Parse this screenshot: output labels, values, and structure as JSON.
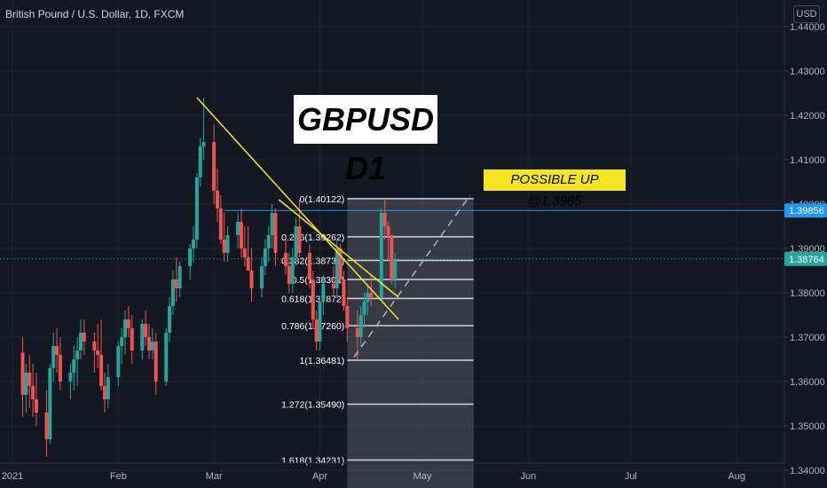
{
  "header": {
    "symbol": "British Pound / U.S. Dollar, 1D, FXCM",
    "currency": "USD"
  },
  "title": "GBPUSD D1",
  "annotation": "POSSIBLE UP @1.3985",
  "colors": {
    "background": "#131722",
    "up": "#26a69a",
    "down": "#ef5350",
    "trend": "#f5e61e",
    "hline": "#2196f3",
    "dashed": "#b2b5be",
    "fib": "#d1d4dc"
  },
  "chart_data": {
    "type": "candlestick",
    "ylim": [
      1.336,
      1.446
    ],
    "yticks": [
      "1.44000",
      "1.43000",
      "1.42000",
      "1.41000",
      "1.40000",
      "1.39000",
      "1.38000",
      "1.37000",
      "1.36000",
      "1.35000",
      "1.34000"
    ],
    "xticks": [
      {
        "label": "2021",
        "date": "2021-01-01"
      },
      {
        "label": "Feb",
        "date": "2021-02-01"
      },
      {
        "label": "Mar",
        "date": "2021-03-01"
      },
      {
        "label": "Apr",
        "date": "2021-04-01"
      },
      {
        "label": "May",
        "date": "2021-05-01"
      },
      {
        "label": "Jun",
        "date": "2021-06-01"
      },
      {
        "label": "Jul",
        "date": "2021-07-01"
      },
      {
        "label": "Aug",
        "date": "2021-08-01"
      }
    ],
    "price_labels": [
      {
        "text": "1.39856",
        "value": 1.39856,
        "style": "blue"
      },
      {
        "text": "1.38764",
        "value": 1.38764,
        "style": "green"
      }
    ],
    "horizontal_line": {
      "value": 1.39856,
      "from": "2021-03-04"
    },
    "fibonacci": {
      "from": "2021-04-09",
      "to": "2021-05-16",
      "levels": [
        {
          "label": "0(1.40122)",
          "value": 1.40122
        },
        {
          "label": "0.236(1.39262)",
          "value": 1.39262
        },
        {
          "label": "0.382(1.38731)",
          "value": 1.38731
        },
        {
          "label": "0.5(1.38301)",
          "value": 1.38301
        },
        {
          "label": "0.618(1.37872)",
          "value": 1.37872
        },
        {
          "label": "0.786(1.37260)",
          "value": 1.3726
        },
        {
          "label": "1(1.36481)",
          "value": 1.36481
        },
        {
          "label": "1.272(1.35490)",
          "value": 1.3549
        },
        {
          "label": "1.618(1.34231)",
          "value": 1.34231
        }
      ]
    },
    "trendlines": [
      {
        "x1": "2021-02-24",
        "y1": 1.424,
        "x2": "2021-04-24",
        "y2": 1.374
      },
      {
        "x1": "2021-03-20",
        "y1": 1.401,
        "x2": "2021-04-24",
        "y2": 1.379
      }
    ],
    "dashed_line": {
      "x1": "2021-04-11",
      "y1": 1.3655,
      "x2": "2021-05-15",
      "y2": 1.402
    },
    "candles": [
      {
        "d": "2021-01-04",
        "o": 1.3665,
        "h": 1.37,
        "l": 1.352,
        "c": 1.357
      },
      {
        "d": "2021-01-05",
        "o": 1.357,
        "h": 1.364,
        "l": 1.353,
        "c": 1.362
      },
      {
        "d": "2021-01-06",
        "o": 1.362,
        "h": 1.366,
        "l": 1.354,
        "c": 1.359
      },
      {
        "d": "2021-01-07",
        "o": 1.359,
        "h": 1.364,
        "l": 1.352,
        "c": 1.356
      },
      {
        "d": "2021-01-08",
        "o": 1.356,
        "h": 1.362,
        "l": 1.35,
        "c": 1.353
      },
      {
        "d": "2021-01-11",
        "o": 1.353,
        "h": 1.358,
        "l": 1.343,
        "c": 1.347
      },
      {
        "d": "2021-01-12",
        "o": 1.347,
        "h": 1.364,
        "l": 1.346,
        "c": 1.363
      },
      {
        "d": "2021-01-13",
        "o": 1.363,
        "h": 1.371,
        "l": 1.36,
        "c": 1.368
      },
      {
        "d": "2021-01-14",
        "o": 1.368,
        "h": 1.372,
        "l": 1.362,
        "c": 1.366
      },
      {
        "d": "2021-01-15",
        "o": 1.366,
        "h": 1.37,
        "l": 1.358,
        "c": 1.36
      },
      {
        "d": "2021-01-18",
        "o": 1.36,
        "h": 1.364,
        "l": 1.356,
        "c": 1.362
      },
      {
        "d": "2021-01-19",
        "o": 1.362,
        "h": 1.368,
        "l": 1.358,
        "c": 1.365
      },
      {
        "d": "2021-01-20",
        "o": 1.365,
        "h": 1.37,
        "l": 1.359,
        "c": 1.367
      },
      {
        "d": "2021-01-21",
        "o": 1.367,
        "h": 1.374,
        "l": 1.365,
        "c": 1.371
      },
      {
        "d": "2021-01-22",
        "o": 1.371,
        "h": 1.374,
        "l": 1.366,
        "c": 1.369
      },
      {
        "d": "2021-01-25",
        "o": 1.369,
        "h": 1.371,
        "l": 1.362,
        "c": 1.367
      },
      {
        "d": "2021-01-26",
        "o": 1.367,
        "h": 1.373,
        "l": 1.363,
        "c": 1.366
      },
      {
        "d": "2021-01-27",
        "o": 1.366,
        "h": 1.374,
        "l": 1.358,
        "c": 1.359
      },
      {
        "d": "2021-01-28",
        "o": 1.359,
        "h": 1.362,
        "l": 1.353,
        "c": 1.356
      },
      {
        "d": "2021-01-29",
        "o": 1.356,
        "h": 1.364,
        "l": 1.354,
        "c": 1.361
      },
      {
        "d": "2021-02-01",
        "o": 1.361,
        "h": 1.369,
        "l": 1.359,
        "c": 1.368
      },
      {
        "d": "2021-02-02",
        "o": 1.368,
        "h": 1.372,
        "l": 1.364,
        "c": 1.37
      },
      {
        "d": "2021-02-03",
        "o": 1.37,
        "h": 1.376,
        "l": 1.366,
        "c": 1.374
      },
      {
        "d": "2021-02-04",
        "o": 1.374,
        "h": 1.377,
        "l": 1.37,
        "c": 1.372
      },
      {
        "d": "2021-02-05",
        "o": 1.372,
        "h": 1.375,
        "l": 1.364,
        "c": 1.367
      },
      {
        "d": "2021-02-08",
        "o": 1.367,
        "h": 1.374,
        "l": 1.365,
        "c": 1.373
      },
      {
        "d": "2021-02-09",
        "o": 1.373,
        "h": 1.376,
        "l": 1.368,
        "c": 1.37
      },
      {
        "d": "2021-02-10",
        "o": 1.37,
        "h": 1.373,
        "l": 1.365,
        "c": 1.367
      },
      {
        "d": "2021-02-11",
        "o": 1.367,
        "h": 1.372,
        "l": 1.365,
        "c": 1.369
      },
      {
        "d": "2021-02-12",
        "o": 1.369,
        "h": 1.371,
        "l": 1.357,
        "c": 1.36
      },
      {
        "d": "2021-02-15",
        "o": 1.36,
        "h": 1.372,
        "l": 1.359,
        "c": 1.371
      },
      {
        "d": "2021-02-16",
        "o": 1.371,
        "h": 1.379,
        "l": 1.369,
        "c": 1.377
      },
      {
        "d": "2021-02-17",
        "o": 1.377,
        "h": 1.385,
        "l": 1.375,
        "c": 1.383
      },
      {
        "d": "2021-02-18",
        "o": 1.383,
        "h": 1.388,
        "l": 1.378,
        "c": 1.381
      },
      {
        "d": "2021-02-19",
        "o": 1.381,
        "h": 1.387,
        "l": 1.379,
        "c": 1.386
      },
      {
        "d": "2021-02-22",
        "o": 1.386,
        "h": 1.391,
        "l": 1.383,
        "c": 1.39
      },
      {
        "d": "2021-02-23",
        "o": 1.39,
        "h": 1.395,
        "l": 1.387,
        "c": 1.392
      },
      {
        "d": "2021-02-24",
        "o": 1.392,
        "h": 1.407,
        "l": 1.39,
        "c": 1.406
      },
      {
        "d": "2021-02-25",
        "o": 1.406,
        "h": 1.415,
        "l": 1.404,
        "c": 1.413
      },
      {
        "d": "2021-02-26",
        "o": 1.413,
        "h": 1.424,
        "l": 1.41,
        "c": 1.414
      },
      {
        "d": "2021-03-01",
        "o": 1.414,
        "h": 1.418,
        "l": 1.4,
        "c": 1.403
      },
      {
        "d": "2021-03-02",
        "o": 1.403,
        "h": 1.408,
        "l": 1.396,
        "c": 1.399
      },
      {
        "d": "2021-03-03",
        "o": 1.399,
        "h": 1.402,
        "l": 1.391,
        "c": 1.392
      },
      {
        "d": "2021-03-04",
        "o": 1.392,
        "h": 1.398,
        "l": 1.387,
        "c": 1.389
      },
      {
        "d": "2021-03-05",
        "o": 1.389,
        "h": 1.395,
        "l": 1.387,
        "c": 1.393
      },
      {
        "d": "2021-03-08",
        "o": 1.393,
        "h": 1.398,
        "l": 1.39,
        "c": 1.396
      },
      {
        "d": "2021-03-09",
        "o": 1.396,
        "h": 1.399,
        "l": 1.388,
        "c": 1.39
      },
      {
        "d": "2021-03-10",
        "o": 1.39,
        "h": 1.395,
        "l": 1.386,
        "c": 1.388
      },
      {
        "d": "2021-03-11",
        "o": 1.388,
        "h": 1.395,
        "l": 1.385,
        "c": 1.385
      },
      {
        "d": "2021-03-12",
        "o": 1.385,
        "h": 1.39,
        "l": 1.378,
        "c": 1.381
      },
      {
        "d": "2021-03-15",
        "o": 1.381,
        "h": 1.388,
        "l": 1.379,
        "c": 1.386
      },
      {
        "d": "2021-03-16",
        "o": 1.386,
        "h": 1.392,
        "l": 1.384,
        "c": 1.39
      },
      {
        "d": "2021-03-17",
        "o": 1.39,
        "h": 1.395,
        "l": 1.387,
        "c": 1.393
      },
      {
        "d": "2021-03-18",
        "o": 1.393,
        "h": 1.4,
        "l": 1.39,
        "c": 1.398
      },
      {
        "d": "2021-03-19",
        "o": 1.398,
        "h": 1.399,
        "l": 1.386,
        "c": 1.389
      },
      {
        "d": "2021-03-22",
        "o": 1.389,
        "h": 1.392,
        "l": 1.384,
        "c": 1.386
      },
      {
        "d": "2021-03-23",
        "o": 1.386,
        "h": 1.389,
        "l": 1.38,
        "c": 1.382
      },
      {
        "d": "2021-03-24",
        "o": 1.382,
        "h": 1.39,
        "l": 1.38,
        "c": 1.388
      },
      {
        "d": "2021-03-25",
        "o": 1.388,
        "h": 1.397,
        "l": 1.386,
        "c": 1.395
      },
      {
        "d": "2021-03-26",
        "o": 1.395,
        "h": 1.401,
        "l": 1.388,
        "c": 1.389
      },
      {
        "d": "2021-03-29",
        "o": 1.389,
        "h": 1.391,
        "l": 1.381,
        "c": 1.383
      },
      {
        "d": "2021-03-30",
        "o": 1.383,
        "h": 1.385,
        "l": 1.372,
        "c": 1.374
      },
      {
        "d": "2021-03-31",
        "o": 1.374,
        "h": 1.376,
        "l": 1.367,
        "c": 1.369
      },
      {
        "d": "2021-04-01",
        "o": 1.369,
        "h": 1.379,
        "l": 1.367,
        "c": 1.378
      },
      {
        "d": "2021-04-02",
        "o": 1.378,
        "h": 1.384,
        "l": 1.375,
        "c": 1.382
      },
      {
        "d": "2021-04-05",
        "o": 1.382,
        "h": 1.386,
        "l": 1.379,
        "c": 1.381
      },
      {
        "d": "2021-04-06",
        "o": 1.381,
        "h": 1.392,
        "l": 1.379,
        "c": 1.39
      },
      {
        "d": "2021-04-07",
        "o": 1.39,
        "h": 1.391,
        "l": 1.382,
        "c": 1.383
      },
      {
        "d": "2021-04-08",
        "o": 1.383,
        "h": 1.385,
        "l": 1.376,
        "c": 1.377
      },
      {
        "d": "2021-04-09",
        "o": 1.377,
        "h": 1.379,
        "l": 1.369,
        "c": 1.372
      },
      {
        "d": "2021-04-12",
        "o": 1.372,
        "h": 1.376,
        "l": 1.365,
        "c": 1.37
      },
      {
        "d": "2021-04-13",
        "o": 1.37,
        "h": 1.377,
        "l": 1.368,
        "c": 1.375
      },
      {
        "d": "2021-04-14",
        "o": 1.375,
        "h": 1.38,
        "l": 1.372,
        "c": 1.378
      },
      {
        "d": "2021-04-15",
        "o": 1.378,
        "h": 1.382,
        "l": 1.375,
        "c": 1.38
      },
      {
        "d": "2021-04-16",
        "o": 1.38,
        "h": 1.384,
        "l": 1.377,
        "c": 1.379
      },
      {
        "d": "2021-04-19",
        "o": 1.379,
        "h": 1.399,
        "l": 1.378,
        "c": 1.398
      },
      {
        "d": "2021-04-20",
        "o": 1.398,
        "h": 1.4012,
        "l": 1.392,
        "c": 1.395
      },
      {
        "d": "2021-04-21",
        "o": 1.395,
        "h": 1.396,
        "l": 1.387,
        "c": 1.393
      },
      {
        "d": "2021-04-22",
        "o": 1.393,
        "h": 1.393,
        "l": 1.382,
        "c": 1.383
      },
      {
        "d": "2021-04-23",
        "o": 1.383,
        "h": 1.389,
        "l": 1.381,
        "c": 1.3876
      }
    ]
  }
}
